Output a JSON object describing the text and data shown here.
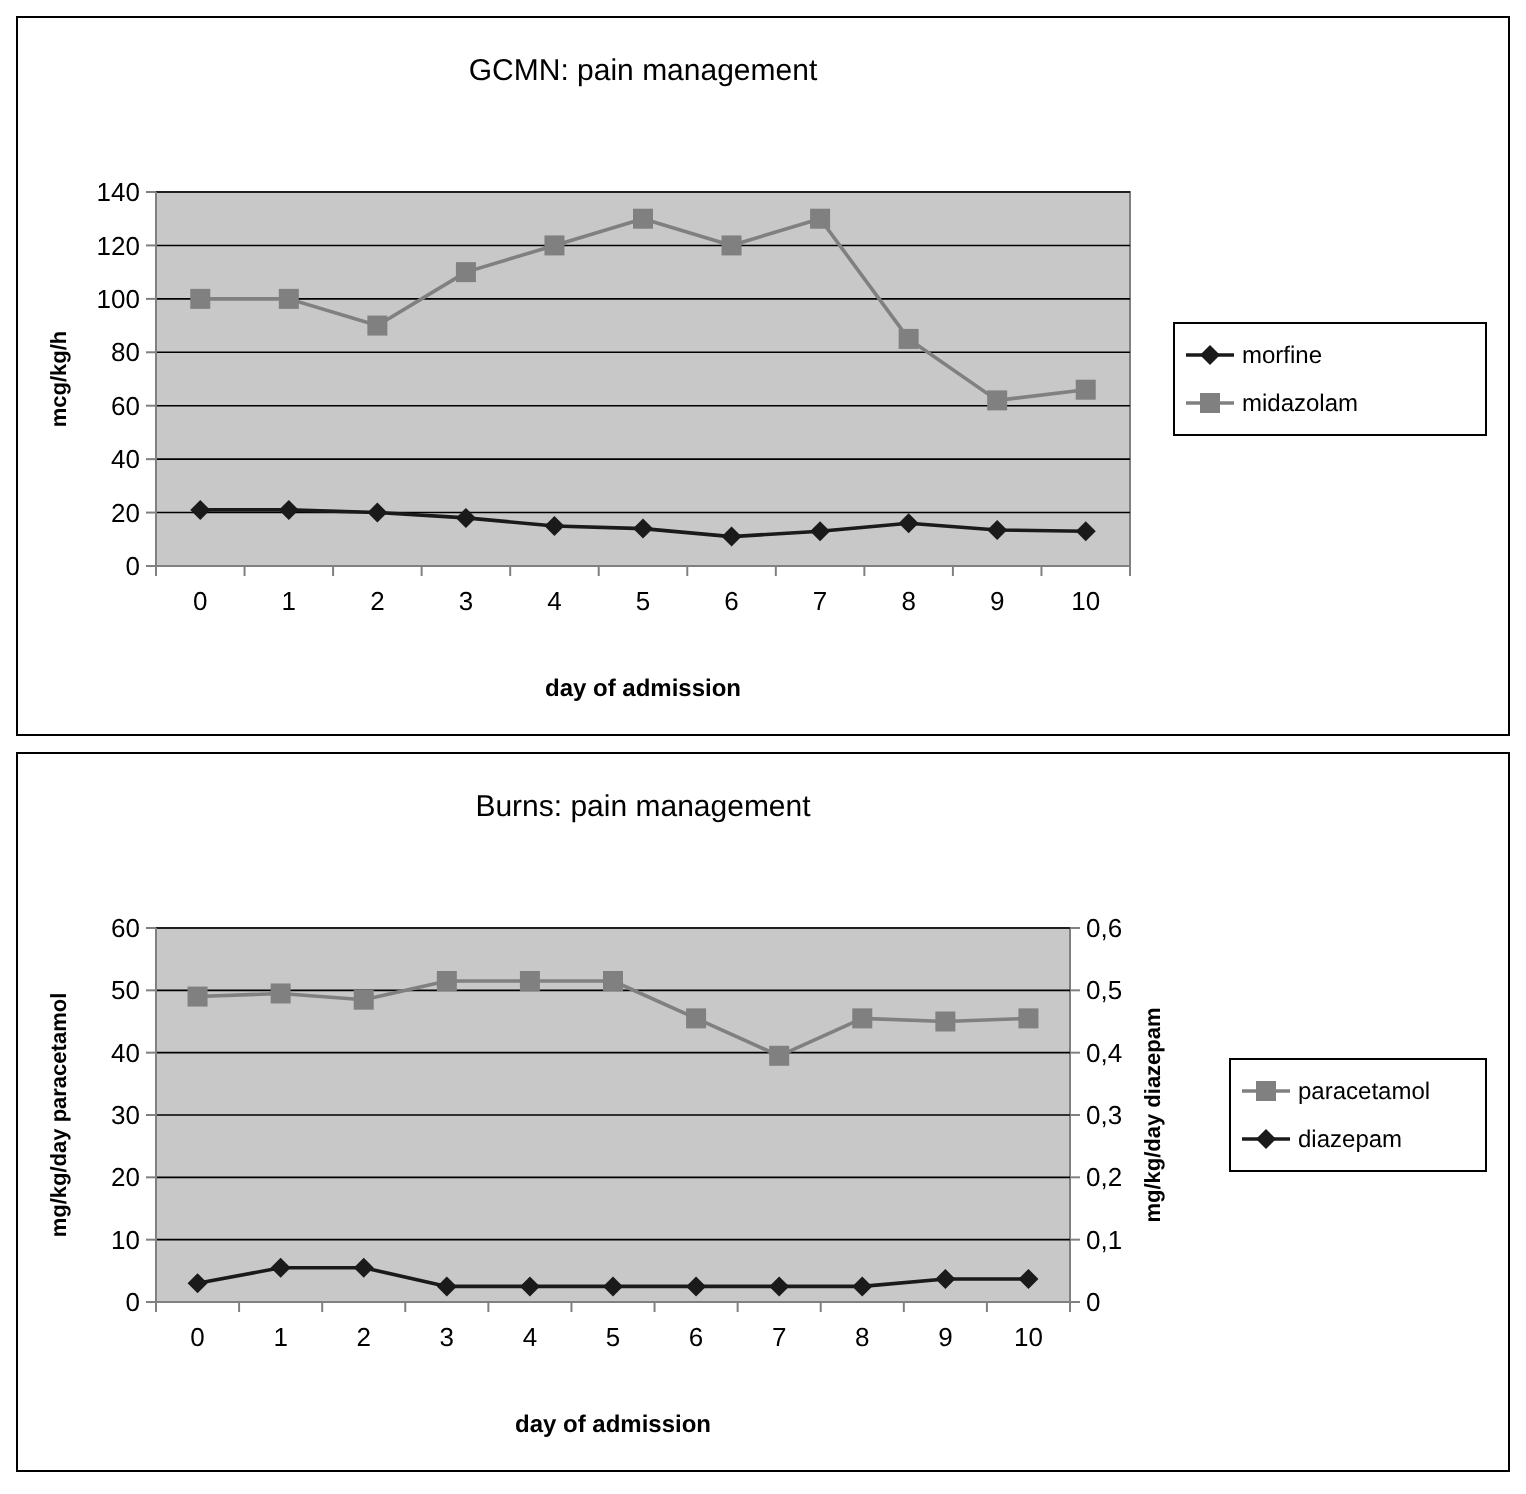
{
  "chart_data": [
    {
      "type": "line",
      "title": "GCMN: pain management",
      "xlabel": "day of admission",
      "ylabel": "mcg/kg/h",
      "categories": [
        "0",
        "1",
        "2",
        "3",
        "4",
        "5",
        "6",
        "7",
        "8",
        "9",
        "10"
      ],
      "ylim": [
        0,
        140
      ],
      "yticks": [
        0,
        20,
        40,
        60,
        80,
        100,
        120,
        140
      ],
      "grid": "y",
      "legend": "right",
      "series": [
        {
          "name": "morfine",
          "color": "#1a1a1a",
          "marker": "diamond",
          "values": [
            21,
            21,
            20,
            18,
            15,
            14,
            11,
            13,
            16,
            13.5,
            13
          ]
        },
        {
          "name": "midazolam",
          "color": "#808080",
          "marker": "square",
          "values": [
            100,
            100,
            90,
            110,
            120,
            130,
            120,
            130,
            85,
            62,
            66
          ]
        }
      ]
    },
    {
      "type": "line",
      "title": "Burns: pain management",
      "xlabel": "day of admission",
      "ylabel": "mg/kg/day paracetamol",
      "y2label": "mg/kg/day diazepam",
      "categories": [
        "0",
        "1",
        "2",
        "3",
        "4",
        "5",
        "6",
        "7",
        "8",
        "9",
        "10"
      ],
      "ylim": [
        0,
        60
      ],
      "yticks": [
        0,
        10,
        20,
        30,
        40,
        50,
        60
      ],
      "y2lim": [
        0,
        0.6
      ],
      "y2ticks": [
        {
          "value": 0,
          "label": "0"
        },
        {
          "value": 0.1,
          "label": "0,1"
        },
        {
          "value": 0.2,
          "label": "0,2"
        },
        {
          "value": 0.3,
          "label": "0,3"
        },
        {
          "value": 0.4,
          "label": "0,4"
        },
        {
          "value": 0.5,
          "label": "0,5"
        },
        {
          "value": 0.6,
          "label": "0,6"
        }
      ],
      "grid": "y",
      "legend": "right",
      "series": [
        {
          "name": "paracetamol",
          "color": "#808080",
          "marker": "square",
          "values": [
            49,
            49.5,
            48.5,
            51.5,
            51.5,
            51.5,
            45.5,
            39.5,
            45.5,
            45,
            45.5
          ]
        },
        {
          "name": "diazepam",
          "color": "#1a1a1a",
          "marker": "diamond",
          "axis": "y2",
          "values": [
            0.03,
            0.055,
            0.055,
            0.025,
            0.025,
            0.025,
            0.025,
            0.025,
            0.025,
            0.037,
            0.037
          ]
        }
      ]
    }
  ]
}
